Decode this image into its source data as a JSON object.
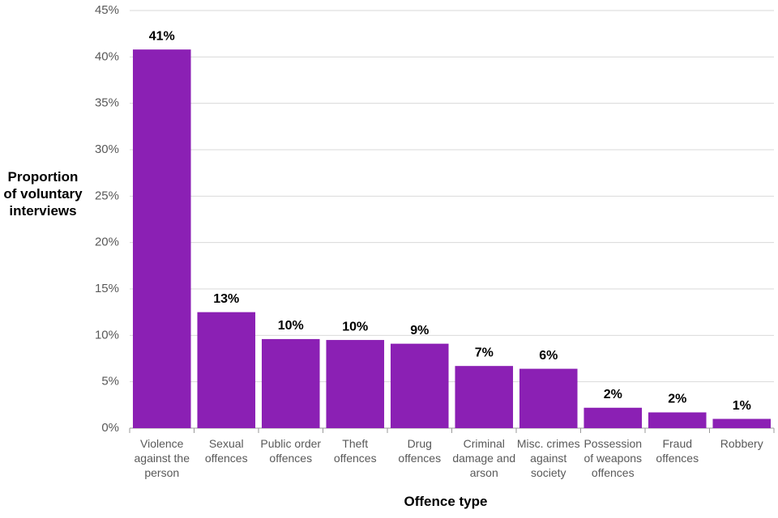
{
  "chart_data": {
    "type": "bar",
    "x_label": "Offence type",
    "y_label": "Proportion of voluntary interviews",
    "categories": [
      "Violence against the person",
      "Sexual offences",
      "Public order offences",
      "Theft offences",
      "Drug offences",
      "Criminal damage and arson",
      "Misc. crimes against society",
      "Possession of weapons offences",
      "Fraud offences",
      "Robbery"
    ],
    "values": [
      40.8,
      12.5,
      9.6,
      9.5,
      9.1,
      6.7,
      6.4,
      2.2,
      1.7,
      1.0
    ],
    "value_labels": [
      "41%",
      "13%",
      "10%",
      "10%",
      "9%",
      "7%",
      "6%",
      "2%",
      "2%",
      "1%"
    ],
    "color": "#8b20b4",
    "ylim": [
      0,
      45
    ],
    "yticks": [
      {
        "value": 0,
        "label": "0%"
      },
      {
        "value": 5,
        "label": "5%"
      },
      {
        "value": 10,
        "label": "10%"
      },
      {
        "value": 15,
        "label": "15%"
      },
      {
        "value": 20,
        "label": "20%"
      },
      {
        "value": 25,
        "label": "25%"
      },
      {
        "value": 30,
        "label": "30%"
      },
      {
        "value": 35,
        "label": "35%"
      },
      {
        "value": 40,
        "label": "40%"
      },
      {
        "value": 45,
        "label": "45%"
      }
    ],
    "grid": true
  }
}
